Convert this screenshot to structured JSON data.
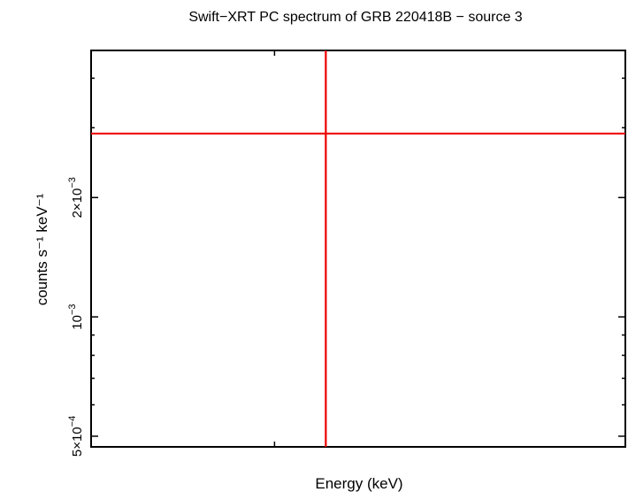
{
  "chart_data": {
    "type": "scatter",
    "title": "Swift−XRT PC spectrum of GRB 220418B − source 3",
    "xlabel": "Energy (keV)",
    "ylabel": "counts s⁻¹ keV⁻¹",
    "xscale": "log",
    "yscale": "log",
    "xlim": [
      0.3,
      10
    ],
    "ylim": [
      0.00047,
      0.0047
    ],
    "grid": false,
    "legend": "none",
    "y_major_ticks": [
      {
        "value": 0.0005,
        "mantissa": "5×10",
        "exponent": "−4"
      },
      {
        "value": 0.001,
        "mantissa": "10",
        "exponent": "−3"
      },
      {
        "value": 0.002,
        "mantissa": "2×10",
        "exponent": "−3"
      }
    ],
    "series": [
      {
        "color": "#ee0000",
        "points": [
          {
            "x": 1.4,
            "x_low": 0.3,
            "x_high": 10,
            "y": 0.0029,
            "y_low": 0.00047,
            "y_high": 0.0047
          }
        ]
      }
    ]
  }
}
